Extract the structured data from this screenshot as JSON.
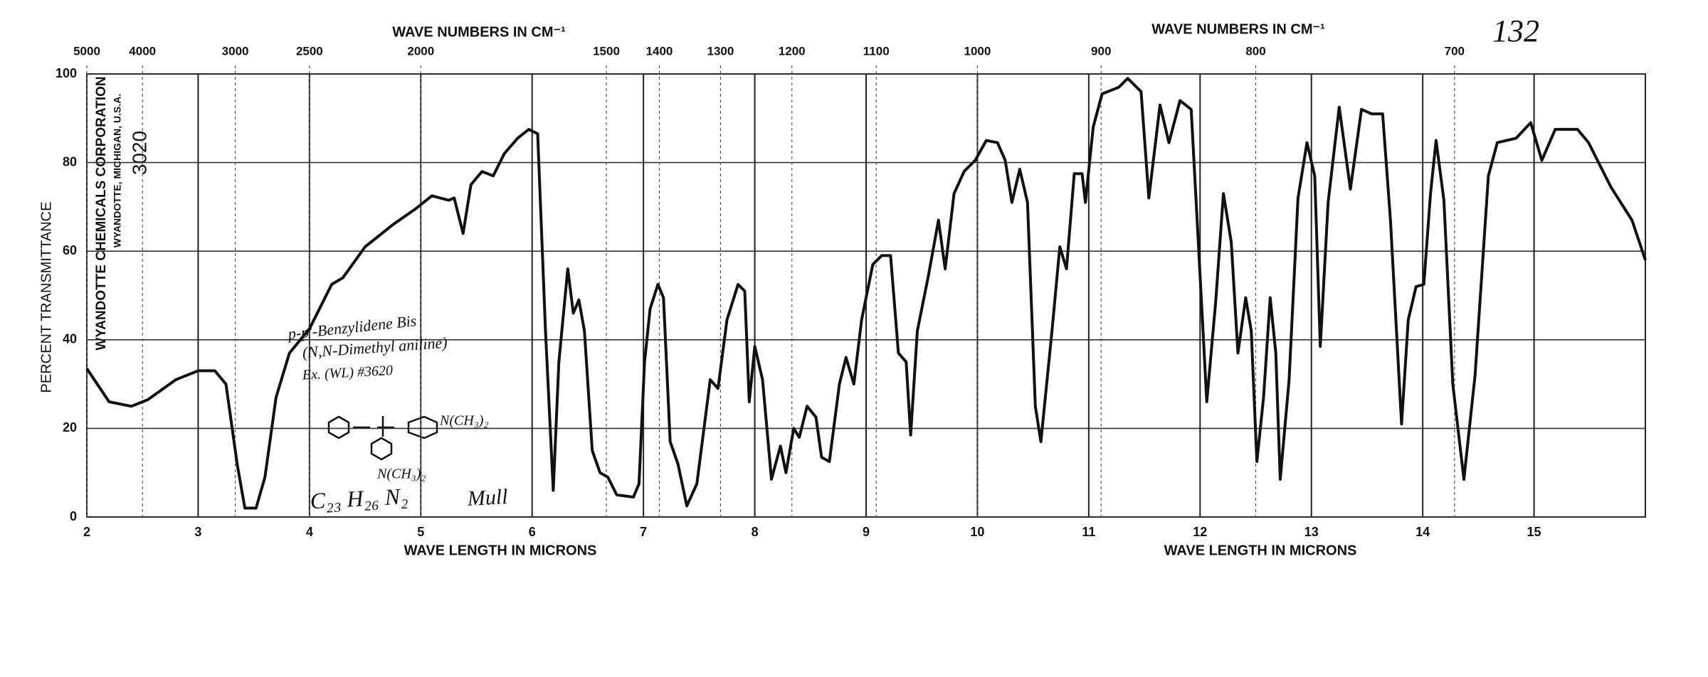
{
  "chart_data": {
    "type": "line",
    "title": "132",
    "xlabel": "WAVE LENGTH IN MICRONS",
    "x2label": "WAVE NUMBERS IN CM⁻¹",
    "ylabel": "PERCENT TRANSMITTANCE",
    "company": "WYANDOTTE CHEMICALS CORPORATION",
    "location": "WYANDOTTE, MICHIGAN, U.S.A.",
    "chart_number": "3020",
    "annotations": [
      "p-p'-Benzylidene Bis",
      "(N,N-Dimethyl aniline)",
      "Ex. (WL) #3620",
      "N(CH₃)₂",
      "N(CH₃)₂",
      "C₂₃ H₂₆ N₂",
      "Mull"
    ],
    "color": "#111111",
    "grid": true,
    "xlim": [
      2,
      16
    ],
    "ylim": [
      0,
      100
    ],
    "xticks": [
      2,
      3,
      4,
      5,
      6,
      7,
      8,
      9,
      10,
      11,
      12,
      13,
      14,
      15
    ],
    "x2ticks": [
      5000,
      4000,
      3000,
      2500,
      2000,
      1500,
      1400,
      1300,
      1200,
      1100,
      1000,
      900,
      800,
      700
    ],
    "yticks": [
      0,
      20,
      40,
      60,
      80,
      100
    ],
    "x": [
      2.0,
      2.2,
      2.4,
      2.55,
      2.8,
      3.0,
      3.15,
      3.25,
      3.35,
      3.42,
      3.52,
      3.6,
      3.7,
      3.82,
      4.0,
      4.2,
      4.3,
      4.5,
      4.75,
      4.95,
      5.1,
      5.25,
      5.3,
      5.38,
      5.45,
      5.55,
      5.65,
      5.75,
      5.87,
      5.97,
      6.05,
      6.12,
      6.19,
      6.24,
      6.32,
      6.37,
      6.42,
      6.47,
      6.54,
      6.61,
      6.68,
      6.76,
      6.91,
      6.96,
      7.01,
      7.06,
      7.13,
      7.18,
      7.24,
      7.31,
      7.39,
      7.48,
      7.6,
      7.67,
      7.75,
      7.85,
      7.91,
      7.95,
      8.0,
      8.07,
      8.15,
      8.23,
      8.28,
      8.35,
      8.4,
      8.47,
      8.55,
      8.6,
      8.67,
      8.76,
      8.82,
      8.89,
      8.96,
      9.06,
      9.14,
      9.22,
      9.29,
      9.36,
      9.4,
      9.46,
      9.56,
      9.65,
      9.71,
      9.79,
      9.88,
      9.98,
      10.08,
      10.18,
      10.25,
      10.31,
      10.38,
      10.45,
      10.52,
      10.57,
      10.67,
      10.74,
      10.8,
      10.87,
      10.94,
      10.97,
      11.04,
      11.12,
      11.27,
      11.35,
      11.47,
      11.54,
      11.64,
      11.72,
      11.82,
      11.92,
      12.0,
      12.06,
      12.14,
      12.21,
      12.28,
      12.34,
      12.41,
      12.46,
      12.51,
      12.57,
      12.63,
      12.68,
      12.72,
      12.8,
      12.88,
      12.96,
      13.03,
      13.08,
      13.15,
      13.25,
      13.35,
      13.45,
      13.54,
      13.64,
      13.71,
      13.81,
      13.87,
      13.94,
      14.01,
      14.07,
      14.12,
      14.19,
      14.27,
      14.37,
      14.47,
      14.59,
      14.67,
      14.84,
      14.97,
      15.07,
      15.19,
      15.39,
      15.49,
      15.69,
      15.88,
      16.0
    ],
    "values": [
      33.5,
      26,
      25,
      26.5,
      31,
      33,
      33,
      30,
      12,
      2,
      2,
      9,
      27,
      37,
      42.5,
      52.5,
      54,
      61,
      66,
      69.5,
      72.5,
      71.5,
      72,
      64,
      75,
      78,
      77,
      82,
      85.5,
      87.5,
      86.5,
      42,
      6,
      35,
      56,
      46,
      49,
      42,
      15,
      10,
      9,
      5,
      4.5,
      7.5,
      35,
      47,
      52.5,
      49.5,
      17,
      12,
      2.5,
      7.5,
      31,
      29,
      44.5,
      52.5,
      51,
      26,
      38.5,
      31,
      8.5,
      16,
      10,
      20,
      18,
      25,
      22.5,
      13.5,
      12.5,
      30,
      36,
      30,
      44.5,
      57,
      59,
      59,
      37,
      35,
      18.5,
      42,
      54.5,
      67,
      56,
      73,
      78,
      80.5,
      85,
      84.5,
      80.5,
      71,
      78.5,
      71,
      25,
      17,
      42,
      61,
      56,
      77.5,
      77.5,
      71,
      88,
      95.5,
      97,
      99,
      96,
      72,
      93,
      84.5,
      94,
      92,
      54.5,
      26,
      48.5,
      73,
      62,
      37,
      49.5,
      42,
      12.5,
      27,
      49.5,
      37,
      8.5,
      31,
      72,
      84.5,
      77,
      38.5,
      71,
      92.5,
      74,
      92,
      91,
      91,
      67,
      21,
      44.5,
      52,
      52.5,
      73,
      85,
      71.5,
      30,
      8.5,
      32,
      77,
      84.5,
      85.5,
      89,
      80.5,
      87.5,
      87.5,
      84.5,
      74.5,
      67,
      58
    ]
  }
}
